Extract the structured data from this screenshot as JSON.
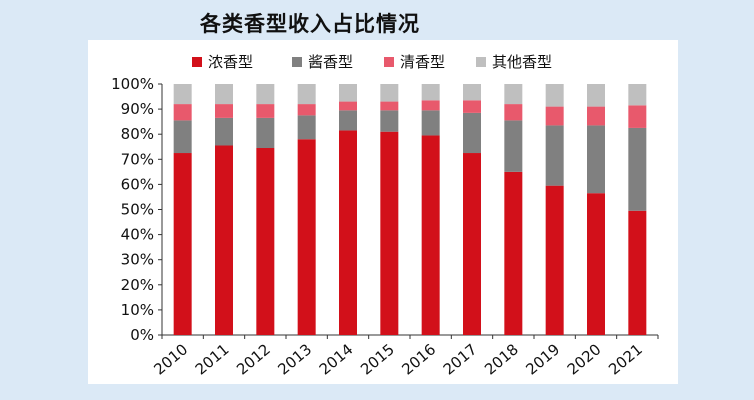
{
  "chart_data": {
    "type": "bar",
    "stacked": true,
    "normalized": true,
    "title": "各类香型收入占比情况",
    "categories": [
      "2010",
      "2011",
      "2012",
      "2013",
      "2014",
      "2015",
      "2016",
      "2017",
      "2018",
      "2019",
      "2020",
      "2021"
    ],
    "series": [
      {
        "name": "浓香型",
        "color": "#d2101a",
        "values": [
          72.5,
          75.5,
          74.5,
          78,
          81.5,
          81,
          79.5,
          72.5,
          65,
          59.5,
          56.5,
          49.5
        ]
      },
      {
        "name": "酱香型",
        "color": "#808080",
        "values": [
          13,
          11,
          12,
          9.5,
          8,
          8.5,
          10,
          16,
          20.5,
          24,
          27,
          33
        ]
      },
      {
        "name": "清香型",
        "color": "#e8596c",
        "values": [
          6.5,
          5.5,
          5.5,
          4.5,
          3.5,
          3.5,
          4,
          5,
          6.5,
          7.5,
          7.5,
          9
        ]
      },
      {
        "name": "其他香型",
        "color": "#bfbfbf",
        "values": [
          8,
          8,
          8,
          8,
          7,
          7,
          6.5,
          6.5,
          8,
          9,
          9,
          8.5
        ]
      }
    ],
    "yaxis": {
      "min": 0,
      "max": 100,
      "ticks": [
        "0%",
        "10%",
        "20%",
        "30%",
        "40%",
        "50%",
        "60%",
        "70%",
        "80%",
        "90%",
        "100%"
      ]
    },
    "legend_position": "top",
    "grid": false,
    "background_color": "#dbe9f6",
    "plot_background": "#ffffff"
  }
}
